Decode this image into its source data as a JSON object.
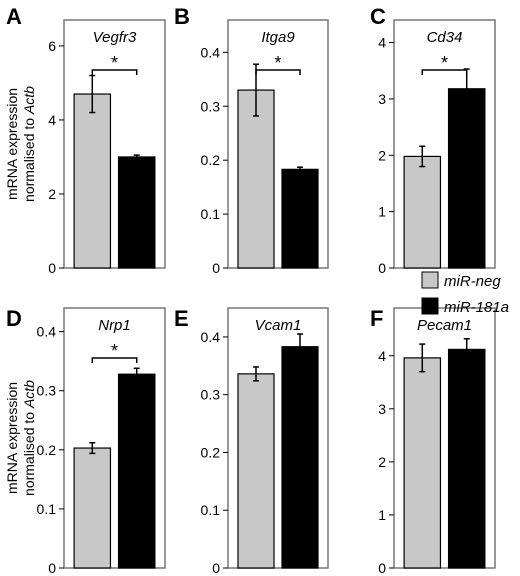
{
  "chart_data": [
    {
      "type": "bar",
      "panel": "A",
      "title": "Vegfr3",
      "categories": [
        "miR-neg",
        "miR-181a"
      ],
      "values": [
        4.7,
        3.0
      ],
      "errors": [
        0.5,
        0.05
      ],
      "ylim": [
        0,
        6.7
      ],
      "yticks": [
        0,
        2,
        4,
        6
      ],
      "significance": "*",
      "ylabel_line1": "mRNA expression",
      "ylabel_line2_prefix": "normalised to ",
      "ylabel_line2_italic": "Actb"
    },
    {
      "type": "bar",
      "panel": "B",
      "title": "Itga9",
      "categories": [
        "miR-neg",
        "miR-181a"
      ],
      "values": [
        0.33,
        0.183
      ],
      "errors": [
        0.048,
        0.004
      ],
      "ylim": [
        0,
        0.46
      ],
      "yticks": [
        0,
        0.1,
        0.2,
        0.3,
        0.4
      ],
      "ytick_labels": [
        "0",
        "0.1",
        "0.2",
        "0.3",
        "0.4"
      ],
      "significance": "*"
    },
    {
      "type": "bar",
      "panel": "C",
      "title": "Cd34",
      "categories": [
        "miR-neg",
        "miR-181a"
      ],
      "values": [
        1.98,
        3.18
      ],
      "errors": [
        0.18,
        0.35
      ],
      "ylim": [
        0,
        4.4
      ],
      "yticks": [
        0,
        1,
        2,
        3,
        4
      ],
      "significance": "*"
    },
    {
      "type": "bar",
      "panel": "D",
      "title": "Nrp1",
      "categories": [
        "miR-neg",
        "miR-181a"
      ],
      "values": [
        0.203,
        0.328
      ],
      "errors": [
        0.009,
        0.01
      ],
      "ylim": [
        0,
        0.44
      ],
      "yticks": [
        0,
        0.1,
        0.2,
        0.3,
        0.4
      ],
      "ytick_labels": [
        "0",
        "0.1",
        "0.2",
        "0.3",
        "0.4"
      ],
      "significance": "*",
      "ylabel_line1": "mRNA expression",
      "ylabel_line2_prefix": "normalised to ",
      "ylabel_line2_italic": "Actb"
    },
    {
      "type": "bar",
      "panel": "E",
      "title": "Vcam1",
      "categories": [
        "miR-neg",
        "miR-181a"
      ],
      "values": [
        0.336,
        0.383
      ],
      "errors": [
        0.012,
        0.022
      ],
      "ylim": [
        0,
        0.45
      ],
      "yticks": [
        0,
        0.1,
        0.2,
        0.3,
        0.4
      ],
      "ytick_labels": [
        "0",
        "0.1",
        "0.2",
        "0.3",
        "0.4"
      ]
    },
    {
      "type": "bar",
      "panel": "F",
      "title": "Pecam1",
      "categories": [
        "miR-neg",
        "miR-181a"
      ],
      "values": [
        3.96,
        4.12
      ],
      "errors": [
        0.26,
        0.2
      ],
      "ylim": [
        0,
        4.9
      ],
      "yticks": [
        0,
        1,
        2,
        3,
        4
      ]
    }
  ],
  "legend": {
    "placement": "right of panel F, between rows",
    "entries": [
      {
        "label": "miR-neg",
        "color": "#c8c8c8"
      },
      {
        "label": "miR-181a",
        "color": "#000000"
      }
    ]
  },
  "colors": {
    "miR-neg": "#c8c8c8",
    "miR-181a": "#000000",
    "frame": "#777777"
  }
}
